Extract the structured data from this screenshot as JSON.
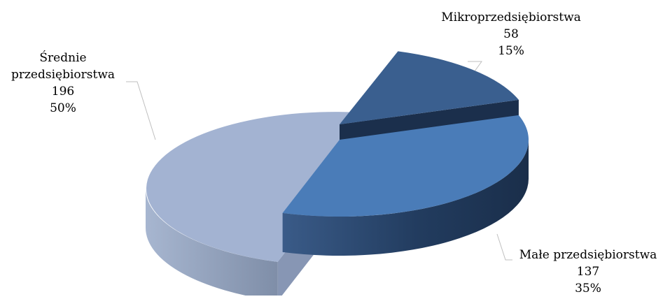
{
  "chart_data": {
    "type": "pie",
    "style": "3d-exploded",
    "slices": [
      {
        "label": "Mikroprzedsiębiorstwa",
        "value": 58,
        "percent": "15%",
        "color": "#3A5F8F"
      },
      {
        "label": "Małe przedsiębiorstwa",
        "value": 137,
        "percent": "35%",
        "color": "#4A7CB8"
      },
      {
        "label": "Średnie przedsiębiorstwa",
        "value": 196,
        "percent": "50%",
        "color": "#A3B3D2"
      }
    ],
    "data_labels": [
      {
        "lines": [
          "Mikroprzedsiębiorstwa",
          "58",
          "15%"
        ],
        "placement": "top-right"
      },
      {
        "lines": [
          "Małe przedsiębiorstwa",
          "137",
          "35%"
        ],
        "placement": "bottom-right"
      },
      {
        "lines": [
          "Średnie",
          "przedsiębiorstwa",
          "196",
          "50%"
        ],
        "placement": "top-left"
      }
    ],
    "legend": "none"
  }
}
